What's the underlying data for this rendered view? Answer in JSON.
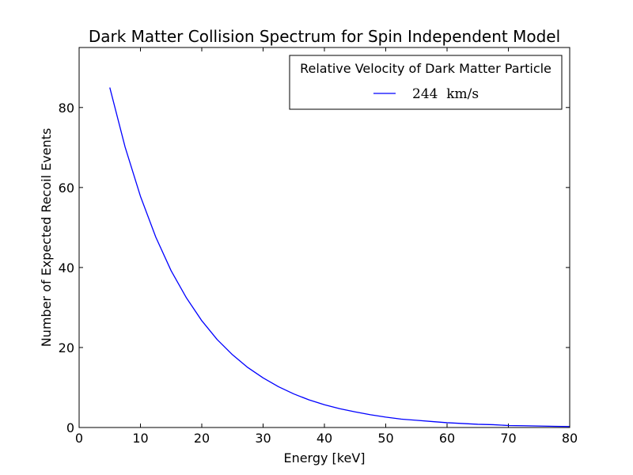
{
  "chart_data": {
    "type": "line",
    "title": "Dark Matter Collision Spectrum for Spin Independent Model",
    "xlabel": "Energy [keV]",
    "ylabel": "Number of Expected Recoil Events",
    "xlim": [
      0,
      80
    ],
    "ylim": [
      0,
      95
    ],
    "xticks": [
      0,
      10,
      20,
      30,
      40,
      50,
      60,
      70,
      80
    ],
    "yticks": [
      0,
      20,
      40,
      60,
      80
    ],
    "grid": false,
    "legend": {
      "title": "Relative Velocity of Dark Matter Particle",
      "placement": "top-right"
    },
    "series": [
      {
        "name": "244  km/s",
        "color": "#0000ff",
        "x": [
          5,
          7.5,
          10,
          12.5,
          15,
          17.5,
          20,
          22.5,
          25,
          27.5,
          30,
          32.5,
          35,
          37.5,
          40,
          42.5,
          45,
          47.5,
          50,
          52.5,
          55,
          57.5,
          60,
          62.5,
          65,
          67.5,
          70,
          72.5,
          75,
          77.5,
          80
        ],
        "y": [
          85,
          70.1,
          57.8,
          47.6,
          39.2,
          32.4,
          26.7,
          22.0,
          18.2,
          15.0,
          12.4,
          10.2,
          8.4,
          6.9,
          5.7,
          4.7,
          3.9,
          3.2,
          2.6,
          2.1,
          1.8,
          1.5,
          1.2,
          1.0,
          0.8,
          0.7,
          0.5,
          0.45,
          0.37,
          0.3,
          0.25
        ]
      }
    ]
  }
}
